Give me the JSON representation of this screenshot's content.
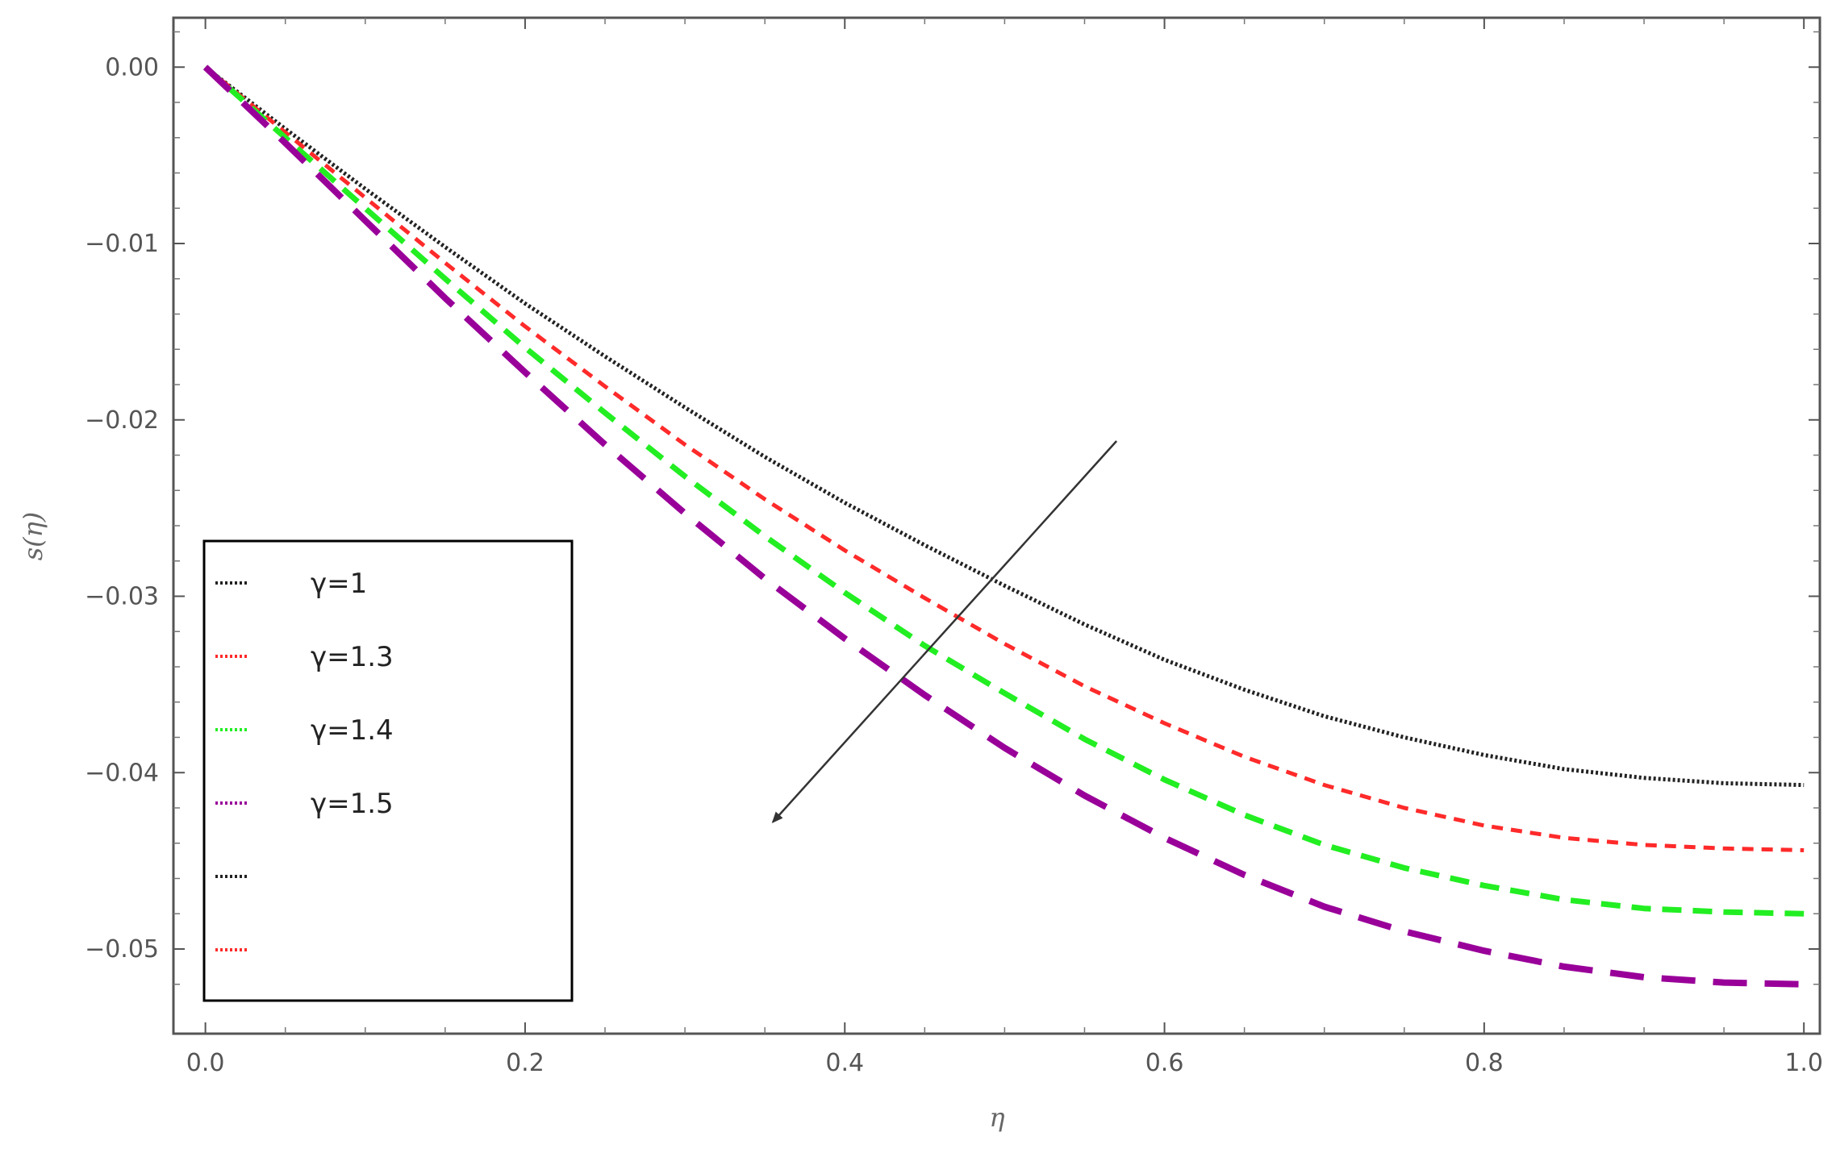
{
  "chart_data": {
    "type": "line",
    "title": "",
    "xlabel": "η",
    "ylabel": "s(η)",
    "xlim": [
      -0.02,
      1.01
    ],
    "ylim": [
      -0.0548,
      0.0028
    ],
    "x_ticks": [
      0.0,
      0.2,
      0.4,
      0.6,
      0.8,
      1.0
    ],
    "x_tick_labels": [
      "0.0",
      "0.2",
      "0.4",
      "0.6",
      "0.8",
      "1.0"
    ],
    "y_ticks": [
      0.0,
      -0.01,
      -0.02,
      -0.03,
      -0.04,
      -0.05
    ],
    "y_tick_labels": [
      "0.00",
      "−0.01",
      "−0.02",
      "−0.03",
      "−0.04",
      "−0.05"
    ],
    "grid": false,
    "legend_position": "left",
    "x": [
      0.0,
      0.05,
      0.1,
      0.15,
      0.2,
      0.25,
      0.3,
      0.35,
      0.4,
      0.45,
      0.5,
      0.55,
      0.6,
      0.65,
      0.7,
      0.75,
      0.8,
      0.85,
      0.9,
      0.95,
      1.0
    ],
    "series": [
      {
        "name": "γ=1",
        "color": "#222222",
        "dash": "dot",
        "values": [
          0.0,
          -0.0035,
          -0.0069,
          -0.0102,
          -0.0134,
          -0.0164,
          -0.0193,
          -0.0221,
          -0.0247,
          -0.0271,
          -0.0294,
          -0.0316,
          -0.0336,
          -0.0353,
          -0.0368,
          -0.038,
          -0.039,
          -0.0398,
          -0.0403,
          -0.0406,
          -0.0407
        ]
      },
      {
        "name": "γ=1.3",
        "color": "#ff2a2a",
        "dash": "short",
        "values": [
          0.0,
          -0.0037,
          -0.0074,
          -0.0111,
          -0.0147,
          -0.0181,
          -0.0214,
          -0.0245,
          -0.0274,
          -0.0301,
          -0.0327,
          -0.0351,
          -0.0372,
          -0.0391,
          -0.0407,
          -0.042,
          -0.043,
          -0.0437,
          -0.0441,
          -0.0443,
          -0.0444
        ]
      },
      {
        "name": "γ=1.4",
        "color": "#22ee22",
        "dash": "medium",
        "values": [
          0.0,
          -0.004,
          -0.008,
          -0.012,
          -0.0159,
          -0.0196,
          -0.0232,
          -0.0266,
          -0.0298,
          -0.0328,
          -0.0355,
          -0.0381,
          -0.0404,
          -0.0424,
          -0.0441,
          -0.0454,
          -0.0464,
          -0.0472,
          -0.0477,
          -0.0479,
          -0.048
        ]
      },
      {
        "name": "γ=1.5",
        "color": "#990099",
        "dash": "long",
        "values": [
          0.0,
          -0.0043,
          -0.0087,
          -0.0131,
          -0.0173,
          -0.0214,
          -0.0253,
          -0.029,
          -0.0324,
          -0.0356,
          -0.0386,
          -0.0413,
          -0.0437,
          -0.0458,
          -0.0476,
          -0.049,
          -0.0501,
          -0.051,
          -0.0516,
          -0.0519,
          -0.052
        ]
      }
    ],
    "extra_legend_entries": [
      {
        "name": "",
        "color": "#222222",
        "dash": "dot"
      },
      {
        "name": "",
        "color": "#ff2a2a",
        "dash": "short"
      }
    ],
    "annotation": {
      "type": "arrow",
      "from": [
        0.57,
        -0.0212
      ],
      "to": [
        0.355,
        -0.0428
      ]
    }
  }
}
